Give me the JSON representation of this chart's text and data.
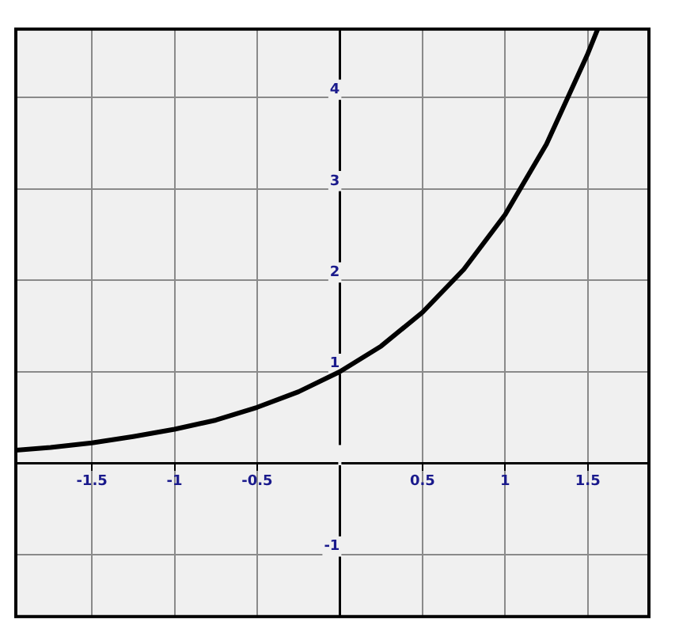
{
  "chart_data": {
    "type": "line",
    "x": [
      -1.96,
      -1.75,
      -1.5,
      -1.25,
      -1,
      -0.75,
      -0.5,
      -0.25,
      0,
      0.25,
      0.5,
      0.75,
      1,
      1.25,
      1.5,
      1.56
    ],
    "series": [
      {
        "color": "#000000",
        "values": [
          0.14,
          0.17,
          0.22,
          0.29,
          0.37,
          0.47,
          0.61,
          0.78,
          1,
          1.28,
          1.65,
          2.12,
          2.72,
          3.49,
          4.48,
          4.75
        ]
      }
    ],
    "xlim": [
      -1.96,
      1.87
    ],
    "ylim": [
      -1.68,
      4.75
    ],
    "xticks": [
      -1.5,
      -1,
      -0.5,
      {
        "value": 0,
        "label": null
      },
      0.5,
      1,
      1.5
    ],
    "yticks": [
      -1,
      {
        "value": 0,
        "label": null
      },
      1,
      2,
      3,
      4
    ],
    "grid": true,
    "marker": "none",
    "line_style": "solid",
    "legend": false
  }
}
